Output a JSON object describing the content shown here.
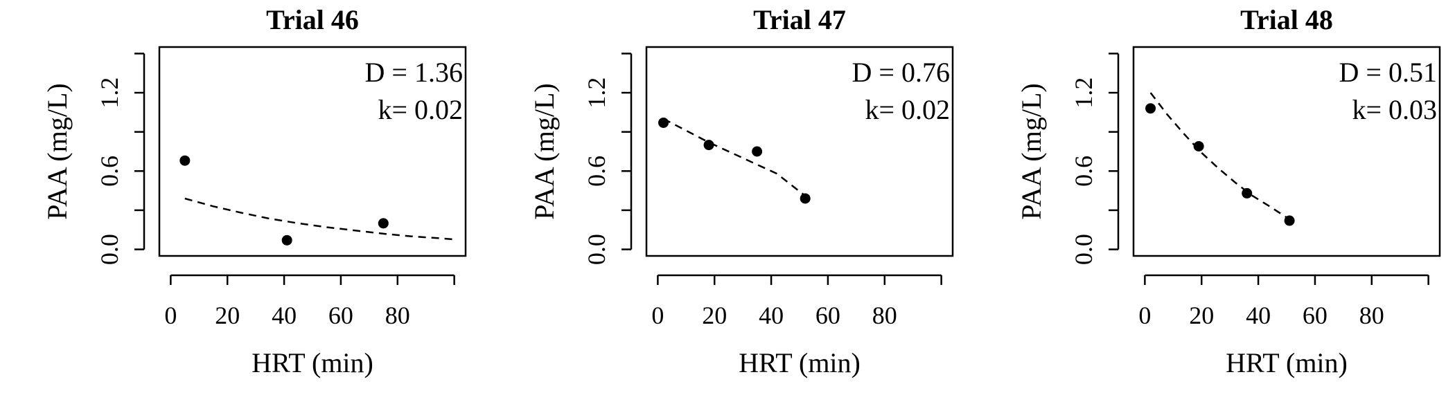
{
  "chart_data": [
    {
      "type": "scatter",
      "title": "Trial 46",
      "xlabel": "HRT (min)",
      "ylabel": "PAA (mg/L)",
      "xlim": [
        -4,
        104
      ],
      "ylim": [
        -0.05,
        1.55
      ],
      "x_ticks": [
        "0",
        "20",
        "40",
        "60",
        "80"
      ],
      "x_tick_values": [
        0,
        20,
        40,
        60,
        80,
        100
      ],
      "y_ticks": [
        "0.0",
        "0.6",
        "1.2"
      ],
      "y_tick_values": [
        0,
        0.3,
        0.6,
        0.9,
        1.2,
        1.5
      ],
      "points": [
        {
          "x": 5,
          "y": 0.68
        },
        {
          "x": 41,
          "y": 0.07
        },
        {
          "x": 75,
          "y": 0.2
        }
      ],
      "fit": {
        "x": [
          5,
          15,
          25,
          35,
          45,
          55,
          65,
          75,
          85,
          95,
          101
        ],
        "y": [
          0.39,
          0.33,
          0.28,
          0.235,
          0.2,
          0.17,
          0.145,
          0.12,
          0.1,
          0.085,
          0.075
        ]
      },
      "annotations": [
        "D = 1.36",
        "k= 0.02"
      ],
      "grid": false
    },
    {
      "type": "scatter",
      "title": "Trial 47",
      "xlabel": "HRT (min)",
      "ylabel": "PAA (mg/L)",
      "xlim": [
        -4,
        104
      ],
      "ylim": [
        -0.05,
        1.55
      ],
      "x_ticks": [
        "0",
        "20",
        "40",
        "60",
        "80"
      ],
      "x_tick_values": [
        0,
        20,
        40,
        60,
        80,
        100
      ],
      "y_ticks": [
        "0.0",
        "0.6",
        "1.2"
      ],
      "y_tick_values": [
        0,
        0.3,
        0.6,
        0.9,
        1.2,
        1.5
      ],
      "points": [
        {
          "x": 2,
          "y": 0.97
        },
        {
          "x": 18,
          "y": 0.8
        },
        {
          "x": 35,
          "y": 0.75
        },
        {
          "x": 52,
          "y": 0.39
        }
      ],
      "fit": {
        "x": [
          2,
          10,
          18,
          26,
          34,
          42,
          52
        ],
        "y": [
          1.0,
          0.91,
          0.82,
          0.74,
          0.66,
          0.58,
          0.41
        ]
      },
      "annotations": [
        "D = 0.76",
        "k= 0.02"
      ],
      "grid": false
    },
    {
      "type": "scatter",
      "title": "Trial 48",
      "xlabel": "HRT (min)",
      "ylabel": "PAA (mg/L)",
      "xlim": [
        -4,
        104
      ],
      "ylim": [
        -0.05,
        1.55
      ],
      "x_ticks": [
        "0",
        "20",
        "40",
        "60",
        "80"
      ],
      "x_tick_values": [
        0,
        20,
        40,
        60,
        80,
        100
      ],
      "y_ticks": [
        "0.0",
        "0.6",
        "1.2"
      ],
      "y_tick_values": [
        0,
        0.3,
        0.6,
        0.9,
        1.2,
        1.5
      ],
      "points": [
        {
          "x": 2,
          "y": 1.08
        },
        {
          "x": 19,
          "y": 0.79
        },
        {
          "x": 36,
          "y": 0.43
        },
        {
          "x": 51,
          "y": 0.22
        }
      ],
      "fit": {
        "x": [
          2,
          8,
          14,
          20,
          26,
          32,
          38,
          44,
          51
        ],
        "y": [
          1.2,
          1.03,
          0.88,
          0.74,
          0.62,
          0.51,
          0.41,
          0.33,
          0.23
        ]
      },
      "annotations": [
        "D = 0.51",
        "k= 0.03"
      ],
      "grid": false
    }
  ]
}
